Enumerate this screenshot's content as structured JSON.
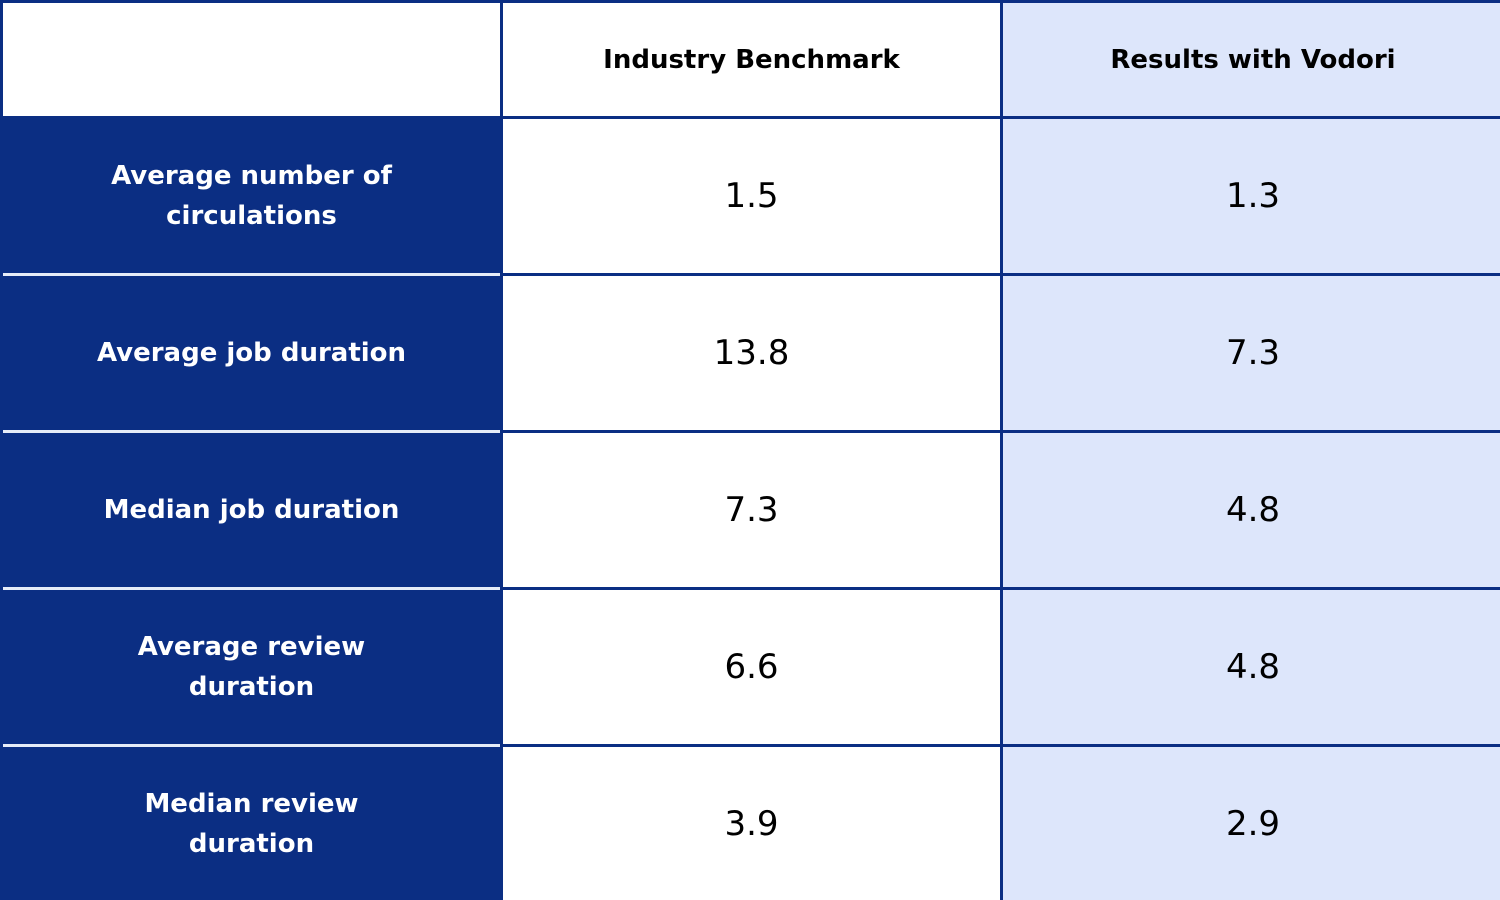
{
  "table": {
    "columns": [
      "Industry Benchmark",
      "Results with Vodori"
    ],
    "rows": [
      {
        "label": "Average number of circulations",
        "values": [
          1.5,
          1.3
        ]
      },
      {
        "label": "Average job duration",
        "values": [
          13.8,
          7.3
        ]
      },
      {
        "label": "Median job duration",
        "values": [
          7.3,
          4.8
        ]
      },
      {
        "label": "Average review duration",
        "values": [
          6.6,
          4.8
        ]
      },
      {
        "label": "Median review duration",
        "values": [
          3.9,
          2.9
        ]
      }
    ]
  }
}
